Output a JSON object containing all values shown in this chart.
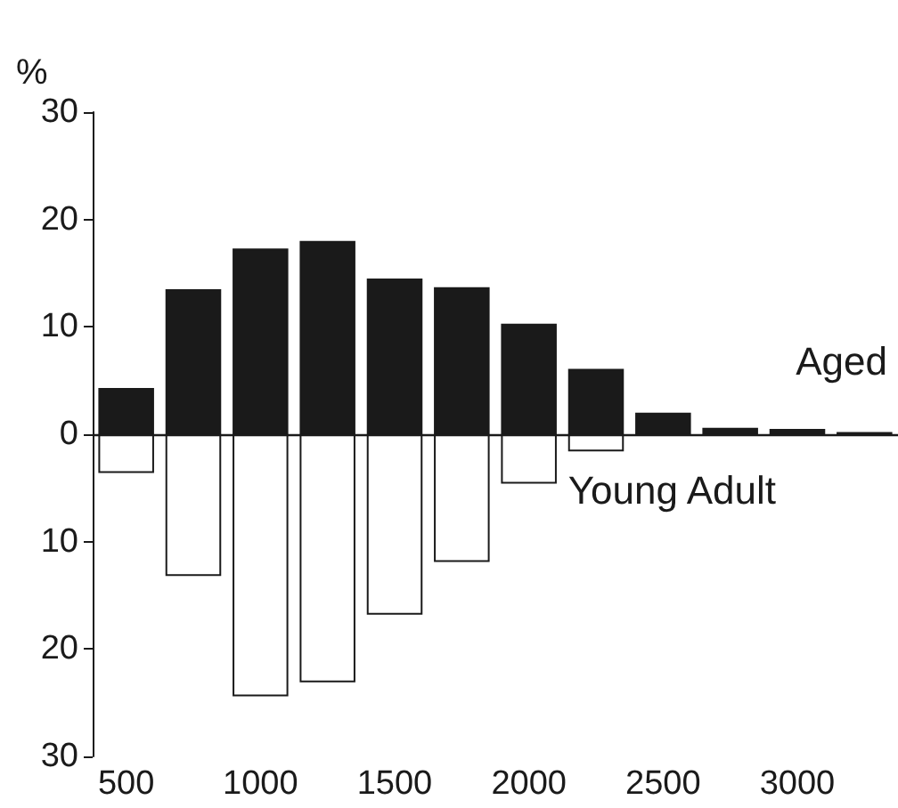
{
  "chart_data": {
    "type": "bar",
    "ylabel": "%",
    "x": [
      500,
      750,
      1000,
      1250,
      1500,
      1750,
      2000,
      2250,
      2500,
      2750,
      3000,
      3250
    ],
    "series": [
      {
        "name": "Aged",
        "color": "#1a1a1a",
        "values": [
          4.3,
          13.5,
          17.3,
          18.0,
          14.5,
          13.7,
          10.3,
          6.1,
          2.0,
          0.6,
          0.5,
          0.2
        ]
      },
      {
        "name": "Young Adult",
        "color": "#ffffff",
        "values": [
          -3.6,
          -13.2,
          -24.4,
          -23.1,
          -16.8,
          -11.9,
          -4.6,
          -1.6,
          null,
          null,
          null,
          null
        ]
      }
    ],
    "xlim": [
      375,
      3375
    ],
    "xticks": [
      500,
      1000,
      1500,
      2000,
      2500,
      3000
    ],
    "ylim": [
      -30,
      30
    ],
    "yticks": [
      {
        "value": -30,
        "label": "30"
      },
      {
        "value": -20,
        "label": "20"
      },
      {
        "value": -10,
        "label": "10"
      },
      0,
      10,
      20,
      30
    ],
    "ref_lines": [
      {
        "axis": "y",
        "value": 0,
        "color": "#1a1a1a"
      }
    ],
    "stacked": true,
    "legend": false,
    "grid": false
  }
}
